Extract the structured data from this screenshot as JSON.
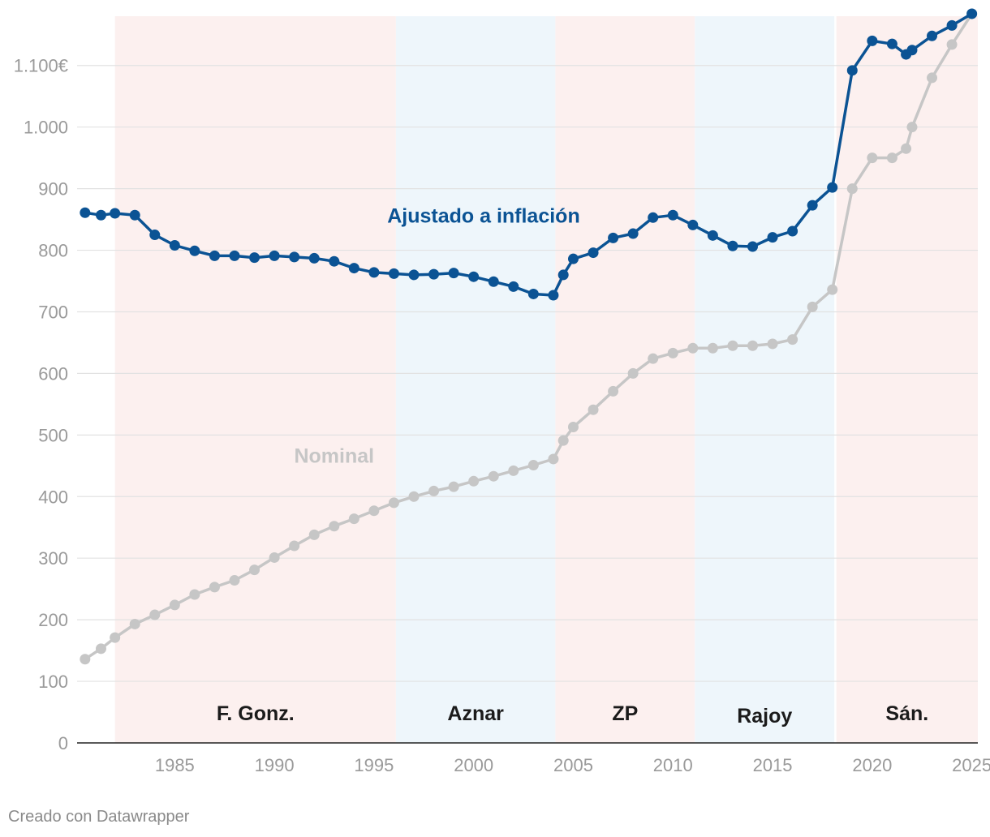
{
  "chart_data": {
    "type": "line",
    "y_axis": {
      "min": 0,
      "max": 1180,
      "ticks": [
        0,
        100,
        200,
        300,
        400,
        500,
        600,
        700,
        800,
        900,
        1000,
        1100
      ],
      "tick_labels": [
        "0",
        "100",
        "200",
        "300",
        "400",
        "500",
        "600",
        "700",
        "800",
        "900",
        "1.000",
        "1.100€"
      ]
    },
    "x_axis": {
      "min": 1980.1,
      "max": 2025.3,
      "ticks": [
        1985,
        1990,
        1995,
        2000,
        2005,
        2010,
        2015,
        2020,
        2025
      ],
      "tick_labels": [
        "1985",
        "1990",
        "1995",
        "2000",
        "2005",
        "2010",
        "2015",
        "2020",
        "2025"
      ]
    },
    "periods": [
      {
        "label": "F. Gonz.",
        "start": 1982.0,
        "end": 1996.1,
        "color": "#fcf0ef"
      },
      {
        "label": "Aznar",
        "start": 1996.1,
        "end": 2004.1,
        "color": "#eef6fb"
      },
      {
        "label": "ZP",
        "start": 2004.1,
        "end": 2011.1,
        "color": "#fcf0ef"
      },
      {
        "label": "Rajoy",
        "start": 2011.1,
        "end": 2018.1,
        "color": "#eef6fb"
      },
      {
        "label": "Sán.",
        "start": 2018.2,
        "end": 2025.3,
        "color": "#fcf0ef"
      }
    ],
    "series": [
      {
        "name": "Nominal",
        "color": "#c6c6c6",
        "points": [
          [
            1980.5,
            136
          ],
          [
            1981.3,
            153
          ],
          [
            1982.0,
            171
          ],
          [
            1983.0,
            193
          ],
          [
            1984.0,
            208
          ],
          [
            1985.0,
            224
          ],
          [
            1986.0,
            241
          ],
          [
            1987.0,
            253
          ],
          [
            1988.0,
            264
          ],
          [
            1989.0,
            281
          ],
          [
            1990.0,
            301
          ],
          [
            1991.0,
            320
          ],
          [
            1992.0,
            338
          ],
          [
            1993.0,
            352
          ],
          [
            1994.0,
            364
          ],
          [
            1995.0,
            377
          ],
          [
            1996.0,
            390
          ],
          [
            1997.0,
            400
          ],
          [
            1998.0,
            409
          ],
          [
            1999.0,
            416
          ],
          [
            2000.0,
            425
          ],
          [
            2001.0,
            433
          ],
          [
            2002.0,
            442
          ],
          [
            2003.0,
            451
          ],
          [
            2004.0,
            461
          ],
          [
            2004.5,
            491
          ],
          [
            2005.0,
            513
          ],
          [
            2006.0,
            541
          ],
          [
            2007.0,
            571
          ],
          [
            2008.0,
            600
          ],
          [
            2009.0,
            624
          ],
          [
            2010.0,
            633
          ],
          [
            2011.0,
            641
          ],
          [
            2012.0,
            641
          ],
          [
            2013.0,
            645
          ],
          [
            2014.0,
            645
          ],
          [
            2015.0,
            648
          ],
          [
            2016.0,
            655
          ],
          [
            2017.0,
            708
          ],
          [
            2018.0,
            736
          ],
          [
            2019.0,
            900
          ],
          [
            2020.0,
            950
          ],
          [
            2021.0,
            950
          ],
          [
            2021.7,
            965
          ],
          [
            2022.0,
            1000
          ],
          [
            2023.0,
            1080
          ],
          [
            2024.0,
            1134
          ],
          [
            2025.0,
            1184
          ]
        ]
      },
      {
        "name": "Ajustado a inflación",
        "color": "#0b5394",
        "points": [
          [
            1980.5,
            861
          ],
          [
            1981.3,
            857
          ],
          [
            1982.0,
            860
          ],
          [
            1983.0,
            857
          ],
          [
            1984.0,
            825
          ],
          [
            1985.0,
            808
          ],
          [
            1986.0,
            799
          ],
          [
            1987.0,
            791
          ],
          [
            1988.0,
            791
          ],
          [
            1989.0,
            788
          ],
          [
            1990.0,
            791
          ],
          [
            1991.0,
            789
          ],
          [
            1992.0,
            787
          ],
          [
            1993.0,
            782
          ],
          [
            1994.0,
            771
          ],
          [
            1995.0,
            764
          ],
          [
            1996.0,
            762
          ],
          [
            1997.0,
            760
          ],
          [
            1998.0,
            761
          ],
          [
            1999.0,
            763
          ],
          [
            2000.0,
            757
          ],
          [
            2001.0,
            749
          ],
          [
            2002.0,
            741
          ],
          [
            2003.0,
            729
          ],
          [
            2004.0,
            727
          ],
          [
            2004.5,
            760
          ],
          [
            2005.0,
            786
          ],
          [
            2006.0,
            796
          ],
          [
            2007.0,
            820
          ],
          [
            2008.0,
            827
          ],
          [
            2009.0,
            853
          ],
          [
            2010.0,
            857
          ],
          [
            2011.0,
            841
          ],
          [
            2012.0,
            824
          ],
          [
            2013.0,
            807
          ],
          [
            2014.0,
            806
          ],
          [
            2015.0,
            821
          ],
          [
            2016.0,
            831
          ],
          [
            2017.0,
            873
          ],
          [
            2018.0,
            902
          ],
          [
            2019.0,
            1092
          ],
          [
            2020.0,
            1140
          ],
          [
            2021.0,
            1135
          ],
          [
            2021.7,
            1118
          ],
          [
            2022.0,
            1125
          ],
          [
            2023.0,
            1148
          ],
          [
            2024.0,
            1165
          ],
          [
            2025.0,
            1184
          ]
        ]
      }
    ],
    "series_labels": [
      {
        "text": "Ajustado a inflación",
        "x": 2000.5,
        "y": 845,
        "color": "#0b5394"
      },
      {
        "text": "Nominal",
        "x": 1993.0,
        "y": 455,
        "color": "#c6c6c6"
      }
    ]
  },
  "footer": {
    "credit": "Creado con Datawrapper"
  }
}
